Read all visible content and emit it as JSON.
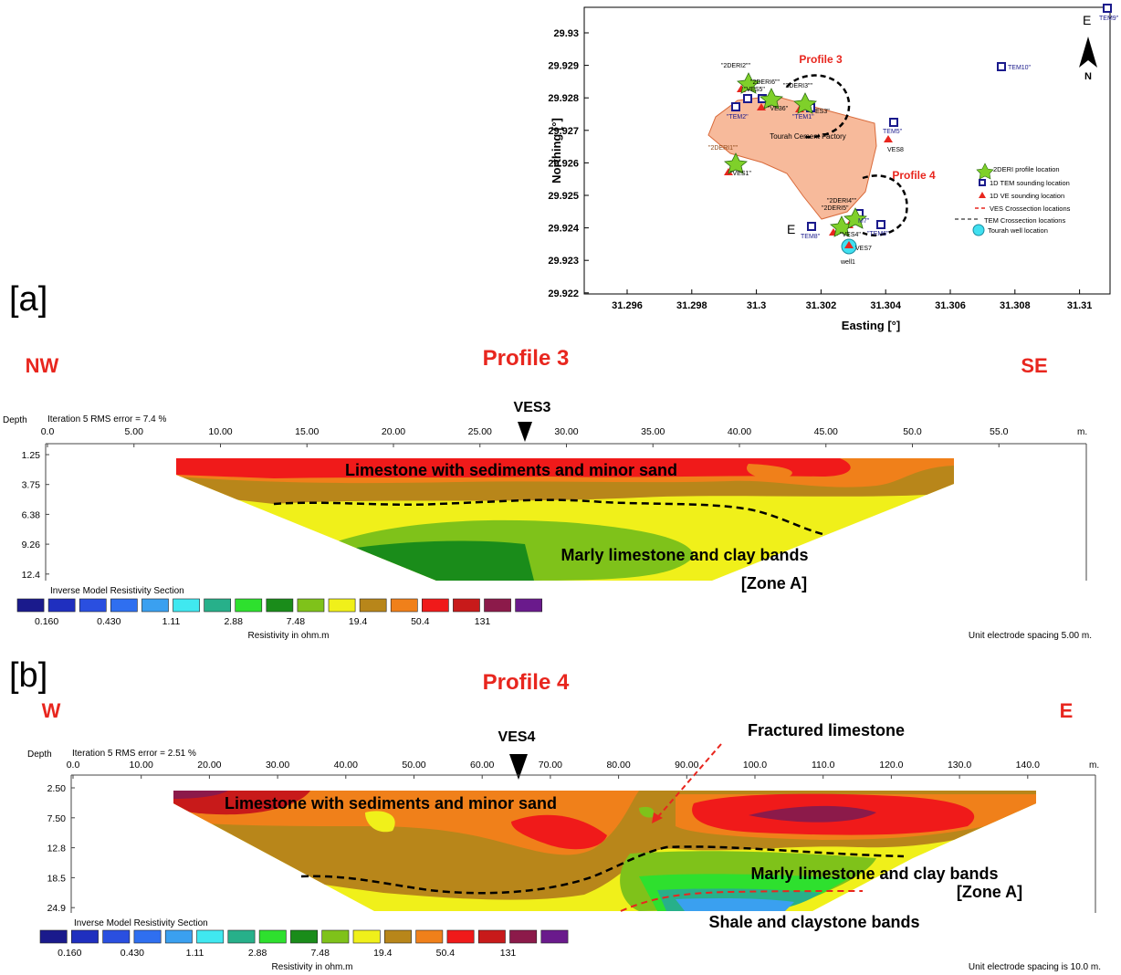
{
  "panel_labels": [
    "[a]",
    "[b]"
  ],
  "map": {
    "xlabel": "Easting [°]",
    "ylabel": "Northing [°]",
    "x_ticks": [
      "31.296",
      "31.298",
      "31.3",
      "31.302",
      "31.304",
      "31.306",
      "31.308",
      "31.31"
    ],
    "y_ticks": [
      "29.93",
      "29.929",
      "29.928",
      "29.927",
      "29.926",
      "29.925",
      "29.924",
      "29.923",
      "29.922"
    ],
    "north_label": "N",
    "factory_label": "Tourah Cement Factory",
    "profile3_label": "Profile 3",
    "profile4_label": "Profile 4",
    "legend": [
      "2DERI profile location",
      "1D TEM sounding location",
      "1D VE sounding location",
      "VES Crossection locations",
      "TEM Crossection locations",
      "Tourah well location"
    ],
    "point_labels": {
      "tem10": "TEM10\"",
      "tem9": "TEM9\"",
      "tem5": "TEM5\"",
      "tem1": "\"TEM1\"",
      "tem2": "\"TEM2\"",
      "tem8": "TEM8\"",
      "tem6": "\"TEM6\"",
      "tem7": "M7\"",
      "ves8": "VES8",
      "ves1": "\"VES1\"",
      "ves5": "\"VES5\"",
      "ves36": "\"VE36\"",
      "ves3": "ES3\"",
      "ves4": "\"VES4\"",
      "ves7": "VES7",
      "well": "well1",
      "deri1": "\"2DERI1\"\"",
      "deri2": "\"2DERI2\"\"",
      "deri3": "\"2DERI3\"\"",
      "deri6": "\"2DERI6\"\"",
      "deri4": "\"2DERI4\"\"",
      "deri5": "\"2DERI5\"",
      "e1": "E",
      "e2": "E"
    }
  },
  "chart_data": [
    {
      "type": "heatmap",
      "title": "Profile 3",
      "left_label": "NW",
      "right_label": "SE",
      "marker_label": "VES3",
      "marker_x": 27.5,
      "header_left": "Depth",
      "header_iter": "Iteration 5 RMS error = 7.4 %",
      "x_unit": "m.",
      "x_ticks": [
        "0.0",
        "5.00",
        "10.00",
        "15.00",
        "20.00",
        "25.00",
        "30.00",
        "35.00",
        "40.00",
        "45.00",
        "50.0",
        "55.0"
      ],
      "x_values": [
        0,
        5,
        10,
        15,
        20,
        25,
        30,
        35,
        40,
        45,
        50,
        55
      ],
      "y_ticks": [
        "1.25",
        "3.75",
        "6.38",
        "9.26",
        "12.4"
      ],
      "annotations": [
        "Limestone with sediments and minor sand",
        "Marly limestone and clay bands",
        "[Zone A]"
      ],
      "scale_title": "Inverse Model Resistivity Section",
      "scale_labels": [
        "0.160",
        "0.430",
        "1.11",
        "2.88",
        "7.48",
        "19.4",
        "50.4",
        "131"
      ],
      "scale_unit": "Resistivity in ohm.m",
      "spacing_note": "Unit electrode spacing 5.00 m."
    },
    {
      "type": "heatmap",
      "title": "Profile 4",
      "left_label": "W",
      "right_label": "E",
      "marker_label": "VES4",
      "marker_x": 66,
      "header_left": "Depth",
      "header_iter": "Iteration 5 RMS error = 2.51 %",
      "x_unit": "m.",
      "x_ticks": [
        "0.0",
        "10.00",
        "20.00",
        "30.00",
        "40.00",
        "50.00",
        "60.00",
        "70.00",
        "80.00",
        "90.00",
        "100.0",
        "110.0",
        "120.0",
        "130.0",
        "140.0"
      ],
      "x_values": [
        0,
        10,
        20,
        30,
        40,
        50,
        60,
        70,
        80,
        90,
        100,
        110,
        120,
        130,
        140
      ],
      "y_ticks": [
        "2.50",
        "7.50",
        "12.8",
        "18.5",
        "24.9"
      ],
      "annotations": [
        "Limestone with sediments and minor sand",
        "Fractured limestone",
        "Marly limestone and clay bands",
        "[Zone A]",
        "Shale and claystone bands"
      ],
      "scale_title": "Inverse Model Resistivity Section",
      "scale_labels": [
        "0.160",
        "0.430",
        "1.11",
        "2.88",
        "7.48",
        "19.4",
        "50.4",
        "131"
      ],
      "scale_unit": "Resistivity in ohm.m",
      "spacing_note": "Unit electrode spacing is 10.0 m."
    }
  ],
  "colors": {
    "scale": [
      "#1a1a8c",
      "#1f2fbf",
      "#2a4fe0",
      "#2f6ff0",
      "#3aa0f0",
      "#40e8f0",
      "#27b08a",
      "#2ee02e",
      "#1a8c1a",
      "#7fc21a",
      "#f0f01a",
      "#b8861a",
      "#f0801a",
      "#f01a1a",
      "#c81a1a",
      "#8c1a4a",
      "#6a1a8c"
    ],
    "red_text": "#e8261e",
    "factory_fill": "#f4a37a"
  }
}
